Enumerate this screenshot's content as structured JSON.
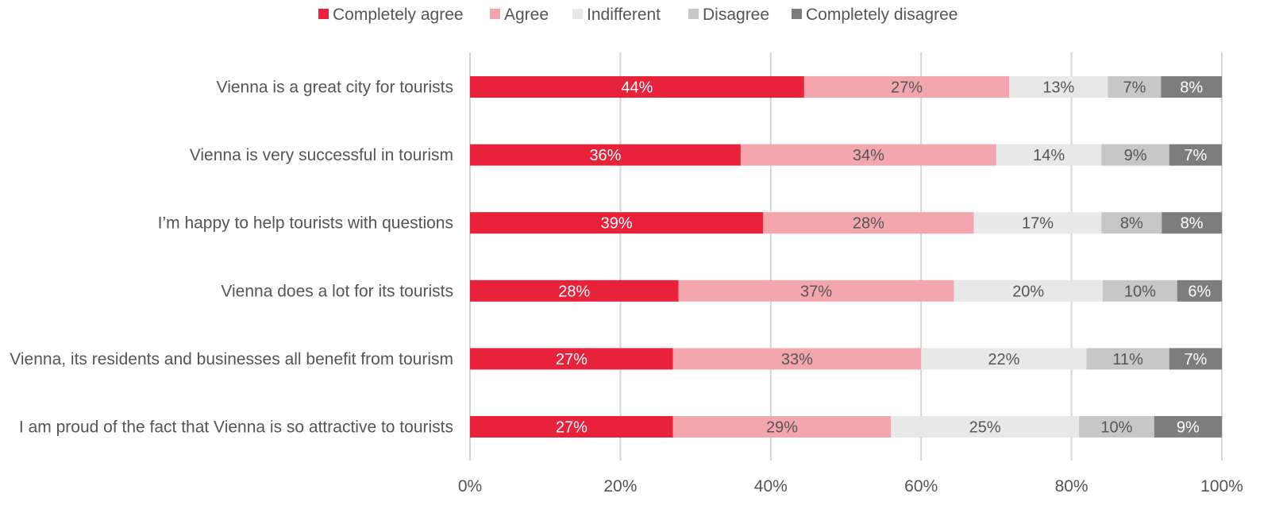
{
  "chart_data": {
    "type": "bar",
    "orientation": "horizontal",
    "stacked": true,
    "title": "",
    "xlabel": "",
    "ylabel": "",
    "xlim": [
      0,
      100
    ],
    "grid": true,
    "legend_position": "top",
    "x_ticks": [
      "0%",
      "20%",
      "40%",
      "60%",
      "80%",
      "100%"
    ],
    "categories": [
      "Vienna is a great city for tourists",
      "Vienna is very successful in tourism",
      "I’m happy to help tourists with questions",
      "Vienna does a lot for its tourists",
      "Vienna, its residents and businesses all benefit from tourism",
      "I am proud of the fact that Vienna is so attractive to tourists"
    ],
    "series": [
      {
        "name": "Completely agree",
        "color": "#e8223a",
        "label_color": "#ffffff",
        "values": [
          44,
          36,
          39,
          28,
          27,
          27
        ]
      },
      {
        "name": "Agree",
        "color": "#f4a6ae",
        "label_color": "#555555",
        "values": [
          27,
          34,
          28,
          37,
          33,
          29
        ]
      },
      {
        "name": "Indifferent",
        "color": "#e8e8e8",
        "label_color": "#555555",
        "values": [
          13,
          14,
          17,
          20,
          22,
          25
        ]
      },
      {
        "name": "Disagree",
        "color": "#c7c7c7",
        "label_color": "#555555",
        "values": [
          7,
          9,
          8,
          10,
          11,
          10
        ]
      },
      {
        "name": "Completely disagree",
        "color": "#7d7d7d",
        "label_color": "#ffffff",
        "values": [
          8,
          7,
          8,
          6,
          7,
          9
        ]
      }
    ]
  }
}
